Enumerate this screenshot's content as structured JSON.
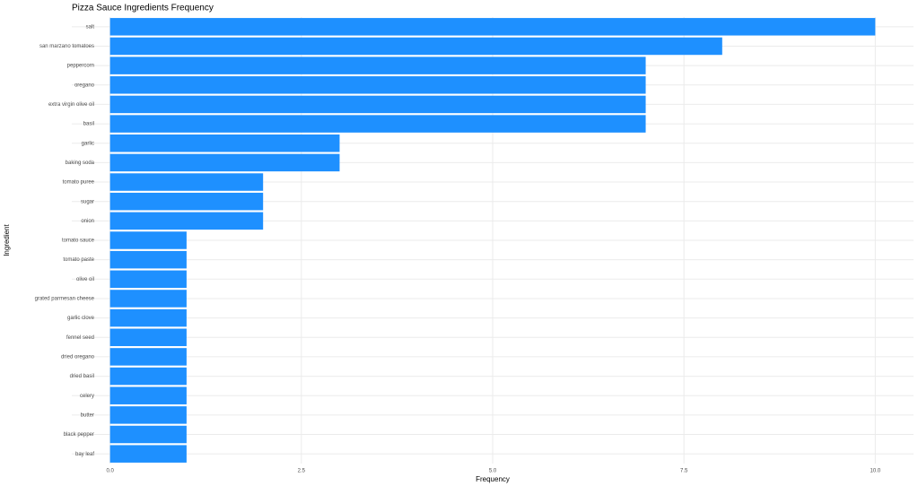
{
  "chart_data": {
    "type": "barh",
    "title": "Pizza Sauce Ingredients Frequency",
    "x_label": "Frequency",
    "y_label": "Ingredient",
    "categories": [
      "salt",
      "san marzano tomatoes",
      "peppercorn",
      "oregano",
      "extra virgin olive oil",
      "basil",
      "garlic",
      "baking soda",
      "tomato puree",
      "sugar",
      "onion",
      "tomato sauce",
      "tomato paste",
      "olive oil",
      "grated parmesan cheese",
      "garlic clove",
      "fennel seed",
      "dried oregano",
      "dried basil",
      "celery",
      "butter",
      "black pepper",
      "bay leaf"
    ],
    "values": [
      10,
      8,
      7,
      7,
      7,
      7,
      3,
      3,
      2,
      2,
      2,
      1,
      1,
      1,
      1,
      1,
      1,
      1,
      1,
      1,
      1,
      1,
      1
    ],
    "color": "#1e90ff",
    "xlim": [
      -0.5,
      10.5
    ],
    "xticks": [
      {
        "value": 0,
        "label": "0.0"
      },
      {
        "value": 2.5,
        "label": "2.5"
      },
      {
        "value": 5,
        "label": "5.0"
      },
      {
        "value": 7.5,
        "label": "7.5"
      },
      {
        "value": 10,
        "label": "10.0"
      }
    ],
    "grid": true
  }
}
